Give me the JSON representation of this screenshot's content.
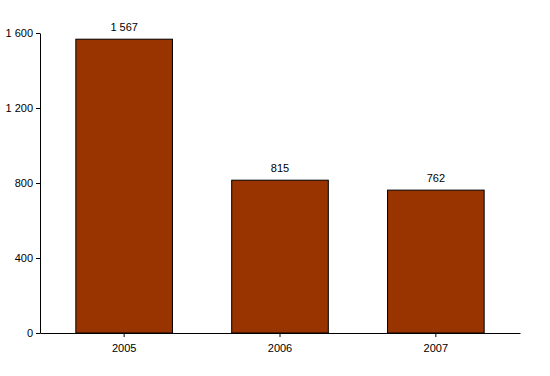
{
  "chart_data": {
    "type": "bar",
    "categories": [
      "2005",
      "2006",
      "2007"
    ],
    "values": [
      1567,
      815,
      762
    ],
    "value_labels": [
      "1 567",
      "815",
      "762"
    ],
    "data_labels": true,
    "color": "#993300",
    "ylim": [
      0,
      1600
    ],
    "yticks": [
      0,
      400,
      800,
      {
        "value": 1200,
        "label": "1 200"
      },
      {
        "value": 1600,
        "label": "1 600"
      }
    ],
    "grid": false
  }
}
